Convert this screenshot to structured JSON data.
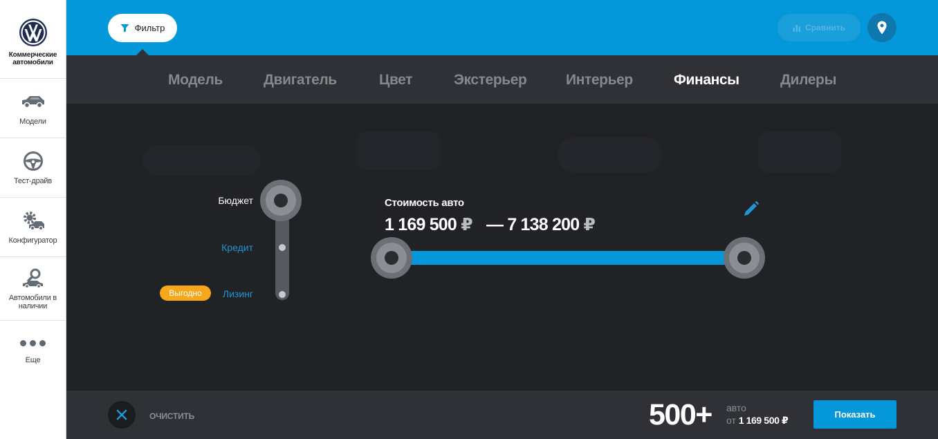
{
  "sidebar": {
    "brand_label": "Коммерческие автомобили",
    "items": [
      {
        "label": "Модели",
        "icon": "car-icon"
      },
      {
        "label": "Тест-драйв",
        "icon": "steering-wheel-icon"
      },
      {
        "label": "Конфигуратор",
        "icon": "configurator-gear-car-icon"
      },
      {
        "label": "Автомобили в наличии",
        "icon": "car-search-icon"
      },
      {
        "label": "Еще",
        "icon": "more-dots-icon"
      }
    ]
  },
  "topbar": {
    "filter_label": "Фильтр",
    "compare_label": "Сравнить",
    "location_icon": "location-pin-icon"
  },
  "tabs": [
    {
      "label": "Модель",
      "active": false
    },
    {
      "label": "Двигатель",
      "active": false
    },
    {
      "label": "Цвет",
      "active": false
    },
    {
      "label": "Экстерьер",
      "active": false
    },
    {
      "label": "Интерьер",
      "active": false
    },
    {
      "label": "Финансы",
      "active": true
    },
    {
      "label": "Дилеры",
      "active": false
    }
  ],
  "finance": {
    "options": [
      {
        "label": "Бюджет",
        "selected": true
      },
      {
        "label": "Кредит",
        "selected": false
      },
      {
        "label": "Лизинг",
        "selected": false
      }
    ],
    "lease_badge": "Выгодно",
    "price_title": "Стоимость авто",
    "price_min": "1 169 500",
    "price_max": "7 138 200",
    "price_separator": "—",
    "currency": "₽"
  },
  "bottombar": {
    "clear_label": "очистить",
    "count": "500+",
    "count_unit": "авто",
    "from_label": "от",
    "from_price": "1 169 500 ₽",
    "show_label": "Показать"
  },
  "colors": {
    "accent": "#0497d9",
    "badge": "#f6a81a",
    "panel": "#2f3136",
    "background": "#212226"
  }
}
